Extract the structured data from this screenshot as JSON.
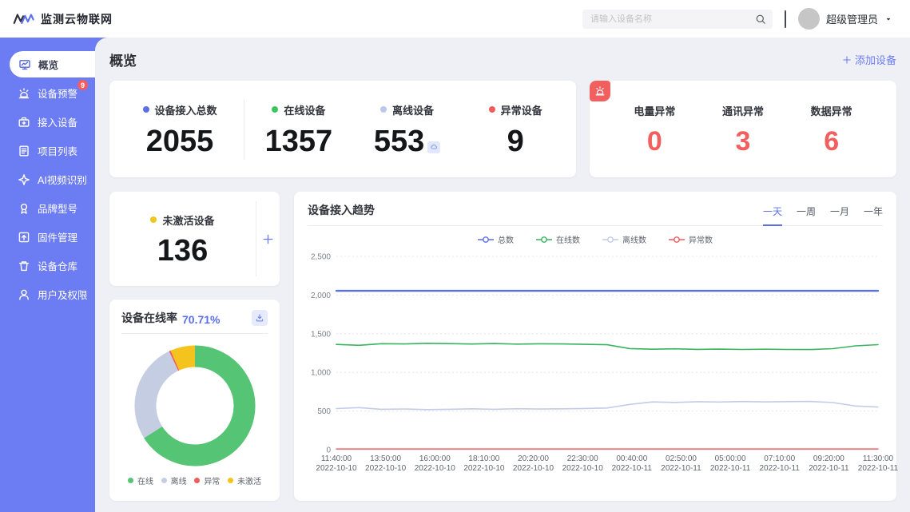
{
  "app": {
    "accent": "#6c7cf2",
    "logo_text": "监测云物联网"
  },
  "header": {
    "search_placeholder": "请输入设备名称",
    "user_name": "超级管理员"
  },
  "sidebar": {
    "items": [
      {
        "id": "overview",
        "label": "概览",
        "icon": "overview-icon",
        "active": true
      },
      {
        "id": "device-alerts",
        "label": "设备预警",
        "icon": "alert-icon",
        "badge": "9"
      },
      {
        "id": "connect-device",
        "label": "接入设备",
        "icon": "connect-icon"
      },
      {
        "id": "project-list",
        "label": "项目列表",
        "icon": "project-icon"
      },
      {
        "id": "ai-video",
        "label": "AI视频识别",
        "icon": "ai-icon"
      },
      {
        "id": "brand-model",
        "label": "品牌型号",
        "icon": "brand-icon"
      },
      {
        "id": "firmware",
        "label": "固件管理",
        "icon": "firmware-icon"
      },
      {
        "id": "device-warehouse",
        "label": "设备仓库",
        "icon": "warehouse-icon"
      },
      {
        "id": "users-permissions",
        "label": "用户及权限",
        "icon": "user-icon"
      }
    ]
  },
  "page": {
    "title": "概览",
    "add_device": "添加设备"
  },
  "stats": [
    {
      "label": "设备接入总数",
      "value": "2055",
      "dot": "#5b6fe8"
    },
    {
      "label": "在线设备",
      "value": "1357",
      "dot": "#3cc45f"
    },
    {
      "label": "离线设备",
      "value": "553",
      "dot": "#bcc8ea",
      "badge_icon": "cloud-icon"
    },
    {
      "label": "异常设备",
      "value": "9",
      "dot": "#f05b5b"
    }
  ],
  "alarm_card": {
    "corner_icon": "alert-icon",
    "value_color": "#f25f5f",
    "items": [
      {
        "label": "电量异常",
        "value": "0"
      },
      {
        "label": "通讯异常",
        "value": "3"
      },
      {
        "label": "数据异常",
        "value": "6"
      }
    ]
  },
  "inactive_card": {
    "label": "未激活设备",
    "value": "136",
    "dot": "#f2c51d"
  },
  "online_rate_card": {
    "title": "设备在线率",
    "rate": "70.71%"
  },
  "trend_card": {
    "title": "设备接入趋势",
    "ranges": [
      {
        "label": "一天",
        "active": true
      },
      {
        "label": "一周",
        "active": false
      },
      {
        "label": "一月",
        "active": false
      },
      {
        "label": "一年",
        "active": false
      }
    ]
  },
  "chart_data": [
    {
      "type": "pie",
      "donut": true,
      "title": "设备在线率 70.71%",
      "legend_position": "bottom",
      "slices": [
        {
          "label": "在线",
          "value": 1357,
          "color": "#55c474"
        },
        {
          "label": "离线",
          "value": 553,
          "color": "#c5cde3"
        },
        {
          "label": "异常",
          "value": 9,
          "color": "#f05b5b"
        },
        {
          "label": "未激活",
          "value": 136,
          "color": "#f5c31d"
        }
      ]
    },
    {
      "type": "line",
      "title": "设备接入趋势",
      "ylim": [
        0,
        2500
      ],
      "yticks": [
        "0",
        "500",
        "1,000",
        "1,500",
        "2,000",
        "2,500"
      ],
      "grid": true,
      "legend_position": "top",
      "xticks": [
        {
          "time": "11:40:00",
          "date": "2022-10-10"
        },
        {
          "time": "13:50:00",
          "date": "2022-10-10"
        },
        {
          "time": "16:00:00",
          "date": "2022-10-10"
        },
        {
          "time": "18:10:00",
          "date": "2022-10-10"
        },
        {
          "time": "20:20:00",
          "date": "2022-10-10"
        },
        {
          "time": "22:30:00",
          "date": "2022-10-10"
        },
        {
          "time": "00:40:00",
          "date": "2022-10-11"
        },
        {
          "time": "02:50:00",
          "date": "2022-10-11"
        },
        {
          "time": "05:00:00",
          "date": "2022-10-11"
        },
        {
          "time": "07:10:00",
          "date": "2022-10-11"
        },
        {
          "time": "09:20:00",
          "date": "2022-10-11"
        },
        {
          "time": "11:30:00",
          "date": "2022-10-11"
        }
      ],
      "series": [
        {
          "name": "总数",
          "color": "#5b6fe8",
          "width": 2.4,
          "values": [
            2055,
            2055,
            2055,
            2055,
            2055,
            2055,
            2055,
            2055,
            2055,
            2055,
            2055,
            2055,
            2055,
            2055,
            2055,
            2055,
            2055,
            2055,
            2055,
            2055,
            2055,
            2055,
            2055,
            2055,
            2055
          ]
        },
        {
          "name": "在线数",
          "color": "#39b45e",
          "width": 1.6,
          "values": [
            1362,
            1350,
            1371,
            1368,
            1376,
            1372,
            1367,
            1373,
            1366,
            1370,
            1368,
            1363,
            1357,
            1308,
            1300,
            1305,
            1298,
            1301,
            1296,
            1300,
            1297,
            1295,
            1307,
            1343,
            1358
          ]
        },
        {
          "name": "离线数",
          "color": "#c3cbe9",
          "width": 1.6,
          "values": [
            532,
            544,
            523,
            527,
            519,
            523,
            529,
            523,
            530,
            526,
            529,
            533,
            539,
            586,
            618,
            612,
            621,
            617,
            623,
            618,
            622,
            624,
            609,
            565,
            552
          ]
        },
        {
          "name": "异常数",
          "color": "#ee5b5b",
          "width": 1.4,
          "values": [
            9,
            9,
            9,
            9,
            9,
            9,
            9,
            9,
            9,
            9,
            9,
            9,
            9,
            9,
            9,
            9,
            9,
            9,
            9,
            9,
            9,
            9,
            9,
            9,
            9
          ]
        }
      ]
    }
  ]
}
